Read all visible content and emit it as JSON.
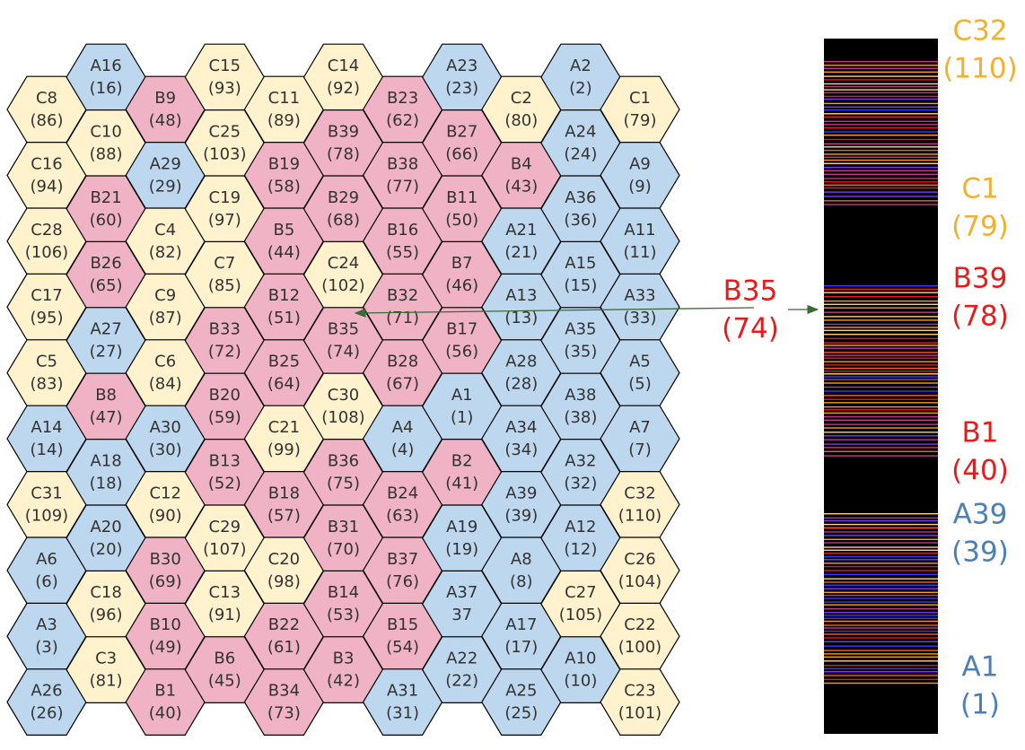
{
  "hexes": {
    "columns": [
      [
        {
          "name": "C8",
          "number": "(86)"
        },
        {
          "name": "C16",
          "number": "(94)"
        },
        {
          "name": "C28",
          "number": "(106)"
        },
        {
          "name": "C17",
          "number": "(95)"
        },
        {
          "name": "C5",
          "number": "(83)"
        },
        {
          "name": "A14",
          "number": "(14)"
        },
        {
          "name": "C31",
          "number": "(109)"
        },
        {
          "name": "A6",
          "number": "(6)"
        },
        {
          "name": "A3",
          "number": "(3)"
        },
        {
          "name": "A26",
          "number": "(26)"
        }
      ],
      [
        {
          "name": "A16",
          "number": "(16)"
        },
        {
          "name": "C10",
          "number": "(88)"
        },
        {
          "name": "B21",
          "number": "(60)"
        },
        {
          "name": "B26",
          "number": "(65)"
        },
        {
          "name": "A27",
          "number": "(27)"
        },
        {
          "name": "B8",
          "number": "(47)"
        },
        {
          "name": "A18",
          "number": "(18)"
        },
        {
          "name": "A20",
          "number": "(20)"
        },
        {
          "name": "C18",
          "number": "(96)"
        },
        {
          "name": "C3",
          "number": "(81)"
        }
      ],
      [
        {
          "name": "B9",
          "number": "(48)"
        },
        {
          "name": "A29",
          "number": "(29)"
        },
        {
          "name": "C4",
          "number": "(82)"
        },
        {
          "name": "C9",
          "number": "(87)"
        },
        {
          "name": "C6",
          "number": "(84)"
        },
        {
          "name": "A30",
          "number": "(30)"
        },
        {
          "name": "C12",
          "number": "(90)"
        },
        {
          "name": "B30",
          "number": "(69)"
        },
        {
          "name": "B10",
          "number": "(49)"
        },
        {
          "name": "B1",
          "number": "(40)"
        }
      ],
      [
        {
          "name": "C15",
          "number": "(93)"
        },
        {
          "name": "C25",
          "number": "(103)"
        },
        {
          "name": "C19",
          "number": "(97)"
        },
        {
          "name": "C7",
          "number": "(85)"
        },
        {
          "name": "B33",
          "number": "(72)"
        },
        {
          "name": "B20",
          "number": "(59)"
        },
        {
          "name": "B13",
          "number": "(52)"
        },
        {
          "name": "C29",
          "number": "(107)"
        },
        {
          "name": "C13",
          "number": "(91)"
        },
        {
          "name": "B6",
          "number": "(45)"
        }
      ],
      [
        {
          "name": "C11",
          "number": "(89)"
        },
        {
          "name": "B19",
          "number": "(58)"
        },
        {
          "name": "B5",
          "number": "(44)"
        },
        {
          "name": "B12",
          "number": "(51)"
        },
        {
          "name": "B25",
          "number": "(64)"
        },
        {
          "name": "C21",
          "number": "(99)"
        },
        {
          "name": "B18",
          "number": "(57)"
        },
        {
          "name": "C20",
          "number": "(98)"
        },
        {
          "name": "B22",
          "number": "(61)"
        },
        {
          "name": "B34",
          "number": "(73)"
        }
      ],
      [
        {
          "name": "C14",
          "number": "(92)"
        },
        {
          "name": "B39",
          "number": "(78)"
        },
        {
          "name": "B29",
          "number": "(68)"
        },
        {
          "name": "C24",
          "number": "(102)"
        },
        {
          "name": "B35",
          "number": "(74)"
        },
        {
          "name": "C30",
          "number": "(108)"
        },
        {
          "name": "B36",
          "number": "(75)"
        },
        {
          "name": "B31",
          "number": "(70)"
        },
        {
          "name": "B14",
          "number": "(53)"
        },
        {
          "name": "B3",
          "number": "(42)"
        }
      ],
      [
        {
          "name": "B23",
          "number": "(62)"
        },
        {
          "name": "B38",
          "number": "(77)"
        },
        {
          "name": "B16",
          "number": "(55)"
        },
        {
          "name": "B32",
          "number": "(71)"
        },
        {
          "name": "B28",
          "number": "(67)"
        },
        {
          "name": "A4",
          "number": "(4)"
        },
        {
          "name": "B24",
          "number": "(63)"
        },
        {
          "name": "B37",
          "number": "(76)"
        },
        {
          "name": "B15",
          "number": "(54)"
        },
        {
          "name": "A31",
          "number": "(31)"
        }
      ],
      [
        {
          "name": "A23",
          "number": "(23)"
        },
        {
          "name": "B27",
          "number": "(66)"
        },
        {
          "name": "B11",
          "number": "(50)"
        },
        {
          "name": "B7",
          "number": "(46)"
        },
        {
          "name": "B17",
          "number": "(56)"
        },
        {
          "name": "A1",
          "number": "(1)"
        },
        {
          "name": "B2",
          "number": "(41)"
        },
        {
          "name": "A19",
          "number": "(19)"
        },
        {
          "name": "A37",
          "number": "37"
        },
        {
          "name": "A22",
          "number": "(22)"
        }
      ],
      [
        {
          "name": "C2",
          "number": "(80)"
        },
        {
          "name": "B4",
          "number": "(43)"
        },
        {
          "name": "A21",
          "number": "(21)"
        },
        {
          "name": "A13",
          "number": "(13)"
        },
        {
          "name": "A28",
          "number": "(28)"
        },
        {
          "name": "A34",
          "number": "(34)"
        },
        {
          "name": "A39",
          "number": "(39)"
        },
        {
          "name": "A8",
          "number": "(8)"
        },
        {
          "name": "A17",
          "number": "(17)"
        },
        {
          "name": "A25",
          "number": "(25)"
        }
      ],
      [
        {
          "name": "A2",
          "number": "(2)"
        },
        {
          "name": "A24",
          "number": "(24)"
        },
        {
          "name": "A36",
          "number": "(36)"
        },
        {
          "name": "A15",
          "number": "(15)"
        },
        {
          "name": "A35",
          "number": "(35)"
        },
        {
          "name": "A38",
          "number": "(38)"
        },
        {
          "name": "A32",
          "number": "(32)"
        },
        {
          "name": "A12",
          "number": "(12)"
        },
        {
          "name": "C27",
          "number": "(105)"
        },
        {
          "name": "A10",
          "number": "(10)"
        }
      ],
      [
        {
          "name": "C1",
          "number": "(79)"
        },
        {
          "name": "A9",
          "number": "(9)"
        },
        {
          "name": "A11",
          "number": "(11)"
        },
        {
          "name": "A33",
          "number": "(33)"
        },
        {
          "name": "A5",
          "number": "(5)"
        },
        {
          "name": "A7",
          "number": "(7)"
        },
        {
          "name": "C32",
          "number": "(110)"
        },
        {
          "name": "C26",
          "number": "(104)"
        },
        {
          "name": "C22",
          "number": "(100)"
        },
        {
          "name": "C23",
          "number": "(101)"
        }
      ]
    ]
  },
  "callout": {
    "name": "B35",
    "number": "(74)"
  },
  "bar_labels": [
    {
      "name": "C32",
      "number": "(110)"
    },
    {
      "name": "C1",
      "number": "(79)"
    },
    {
      "name": "B39",
      "number": "(78)"
    },
    {
      "name": "B1",
      "number": "(40)"
    },
    {
      "name": "A39",
      "number": "(39)"
    },
    {
      "name": "A1",
      "number": "(1)"
    }
  ]
}
